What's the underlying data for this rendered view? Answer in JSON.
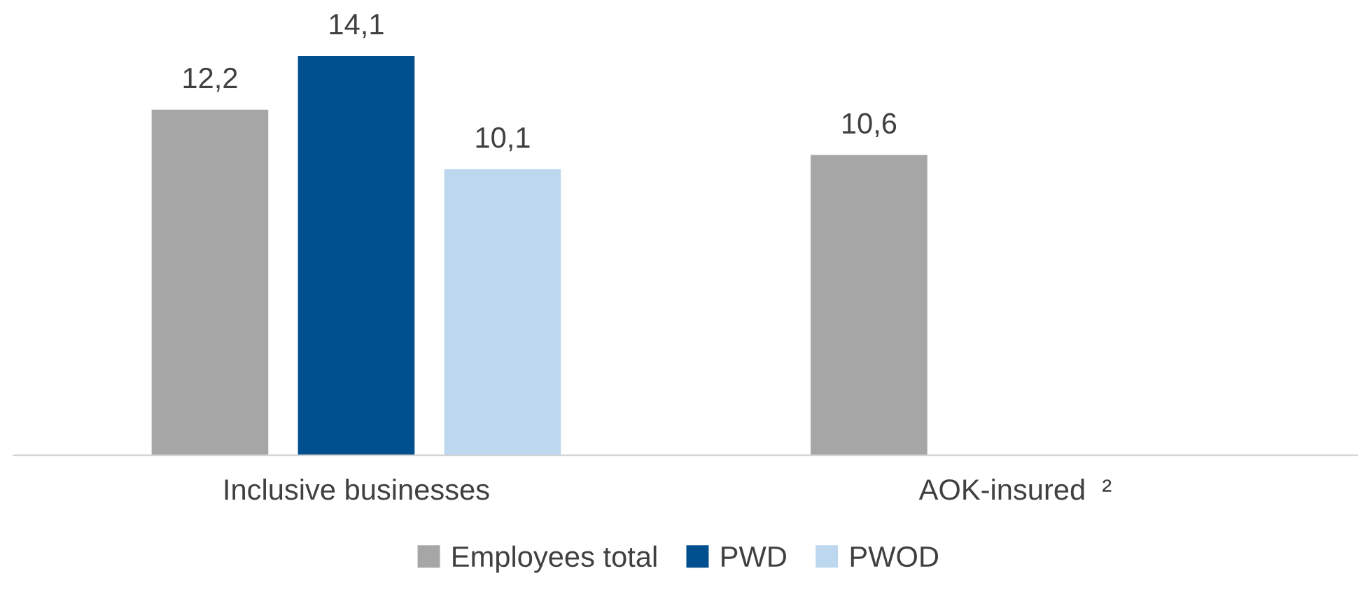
{
  "chart_data": {
    "type": "bar",
    "categories": [
      "Inclusive businesses",
      "AOK-insured  ²"
    ],
    "series": [
      {
        "name": "Employees total",
        "color": "#a6a6a6",
        "values": [
          12.2,
          10.6
        ],
        "value_labels": [
          "12,2",
          "10,6"
        ]
      },
      {
        "name": "PWD",
        "color": "#004f8f",
        "values": [
          14.1,
          null
        ],
        "value_labels": [
          "14,1",
          null
        ]
      },
      {
        "name": "PWOD",
        "color": "#bdd7ee",
        "values": [
          10.1,
          null
        ],
        "value_labels": [
          "10,1",
          null
        ]
      }
    ],
    "tick_labels": "x",
    "legend": "bottom"
  }
}
